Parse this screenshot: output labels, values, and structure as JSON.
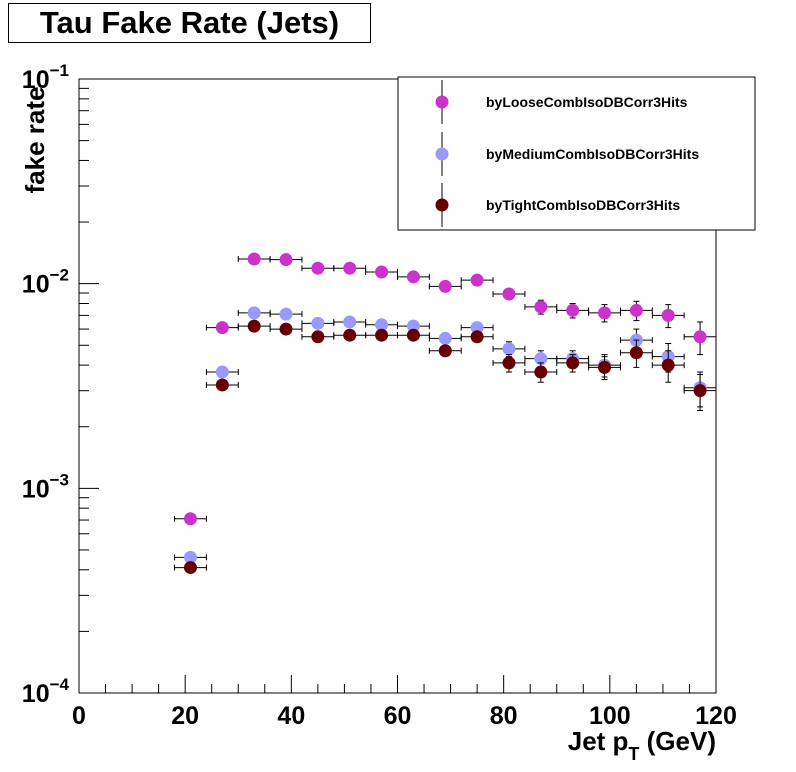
{
  "chart_data": {
    "type": "scatter",
    "title": "Tau Fake Rate (Jets)",
    "xlabel_main": "Jet p",
    "xlabel_sub": "T",
    "xlabel_tail": " (GeV)",
    "ylabel": "fake rate",
    "xlim": [
      0,
      120
    ],
    "ylim": [
      0.0001,
      0.1
    ],
    "yscale": "log",
    "x_ticks": [
      0,
      20,
      40,
      60,
      80,
      100,
      120
    ],
    "x_tick_labels": [
      "0",
      "20",
      "40",
      "60",
      "80",
      "100",
      "120"
    ],
    "y_ticks": [
      0.0001,
      0.001,
      0.01,
      0.1
    ],
    "y_tick_bases": [
      "10",
      "10",
      "10",
      "10"
    ],
    "y_tick_exps": [
      "−4",
      "−3",
      "−2",
      "−1"
    ],
    "legend_position": "top-right",
    "x_halfwidth": 3,
    "series": [
      {
        "name": "byLooseCombIsoDBCorr3Hits",
        "color": "#cc33cc",
        "x": [
          21,
          27,
          33,
          39,
          45,
          51,
          57,
          63,
          69,
          75,
          81,
          87,
          93,
          99,
          105,
          111,
          117
        ],
        "y": [
          0.00071,
          0.0061,
          0.0132,
          0.0131,
          0.0119,
          0.0119,
          0.0114,
          0.0108,
          0.0097,
          0.0104,
          0.0089,
          0.0077,
          0.0074,
          0.0072,
          0.0074,
          0.007,
          0.0055
        ],
        "yerr": [
          2e-05,
          0.0001,
          0.0002,
          0.0002,
          0.0002,
          0.0002,
          0.0002,
          0.0002,
          0.0002,
          0.0003,
          0.0004,
          0.0006,
          0.0006,
          0.0007,
          0.0008,
          0.0009,
          0.001
        ]
      },
      {
        "name": "byMediumCombIsoDBCorr3Hits",
        "color": "#9999ff",
        "x": [
          21,
          27,
          33,
          39,
          45,
          51,
          57,
          63,
          69,
          75,
          81,
          87,
          93,
          99,
          105,
          111,
          117
        ],
        "y": [
          0.00046,
          0.0037,
          0.0072,
          0.0071,
          0.0064,
          0.0065,
          0.0063,
          0.0062,
          0.0054,
          0.0061,
          0.0048,
          0.0043,
          0.0043,
          0.004,
          0.0053,
          0.0044,
          0.0031
        ],
        "yerr": [
          2e-05,
          0.0001,
          0.0002,
          0.0002,
          0.0002,
          0.0002,
          0.0002,
          0.0002,
          0.0002,
          0.0003,
          0.0004,
          0.0004,
          0.0004,
          0.0005,
          0.0007,
          0.0007,
          0.0006
        ]
      },
      {
        "name": "byTightCombIsoDBCorr3Hits",
        "color": "#660000",
        "x": [
          21,
          27,
          33,
          39,
          45,
          51,
          57,
          63,
          69,
          75,
          81,
          87,
          93,
          99,
          105,
          111,
          117
        ],
        "y": [
          0.00041,
          0.0032,
          0.0062,
          0.006,
          0.0055,
          0.0056,
          0.0056,
          0.0056,
          0.0047,
          0.0055,
          0.0041,
          0.0037,
          0.0041,
          0.0039,
          0.0046,
          0.004,
          0.003
        ],
        "yerr": [
          2e-05,
          0.0001,
          0.0002,
          0.0002,
          0.0002,
          0.0002,
          0.0002,
          0.0002,
          0.0002,
          0.0003,
          0.0004,
          0.0004,
          0.0004,
          0.0005,
          0.0007,
          0.0007,
          0.0006
        ]
      }
    ]
  }
}
